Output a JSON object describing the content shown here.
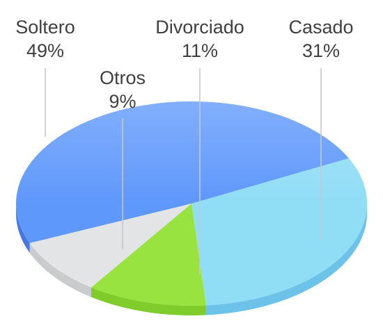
{
  "chart_data": {
    "type": "pie",
    "title": "",
    "legend": "none",
    "slices": [
      {
        "label": "Casado",
        "value": 31,
        "percent_label": "31%",
        "color": "#90ddf6",
        "side_color": "#6cc2e8"
      },
      {
        "label": "Divorciado",
        "value": 11,
        "percent_label": "11%",
        "color": "#98e33f",
        "side_color": "#80cc2a"
      },
      {
        "label": "Otros",
        "value": 9,
        "percent_label": "9%",
        "color": "#e2e4e6",
        "side_color": "#c9cbcd"
      },
      {
        "label": "Soltero",
        "value": 49,
        "percent_label": "49%",
        "color": "#5f98fb",
        "side_color": "#4778dc"
      }
    ]
  }
}
